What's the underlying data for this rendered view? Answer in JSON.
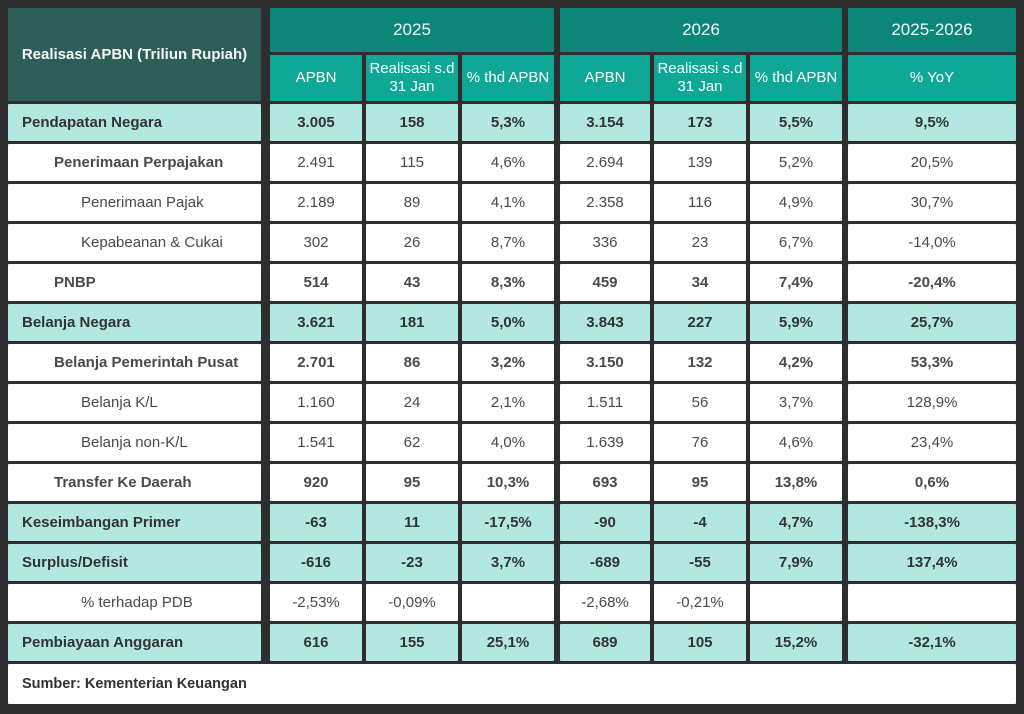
{
  "chart_data": {
    "type": "table",
    "title": "Realisasi APBN (Triliun Rupiah)",
    "column_groups": [
      {
        "label": "2025",
        "columns": [
          "APBN",
          "Realisasi s.d 31 Jan",
          "% thd APBN"
        ]
      },
      {
        "label": "2026",
        "columns": [
          "APBN",
          "Realisasi s.d 31 Jan",
          "% thd APBN"
        ]
      },
      {
        "label": "2025-2026",
        "columns": [
          "% YoY"
        ]
      }
    ],
    "rows": [
      {
        "label": "Pendapatan Negara",
        "indent": 0,
        "highlight": true,
        "label_bold": true,
        "values_bold": true,
        "values": [
          "3.005",
          "158",
          "5,3%",
          "3.154",
          "173",
          "5,5%",
          "9,5%"
        ]
      },
      {
        "label": "Penerimaan Perpajakan",
        "indent": 1,
        "highlight": false,
        "label_bold": true,
        "values_bold": false,
        "values": [
          "2.491",
          "115",
          "4,6%",
          "2.694",
          "139",
          "5,2%",
          "20,5%"
        ]
      },
      {
        "label": "Penerimaan Pajak",
        "indent": 2,
        "highlight": false,
        "label_bold": false,
        "values_bold": false,
        "values": [
          "2.189",
          "89",
          "4,1%",
          "2.358",
          "116",
          "4,9%",
          "30,7%"
        ]
      },
      {
        "label": "Kepabeanan & Cukai",
        "indent": 2,
        "highlight": false,
        "label_bold": false,
        "values_bold": false,
        "values": [
          "302",
          "26",
          "8,7%",
          "336",
          "23",
          "6,7%",
          "-14,0%"
        ]
      },
      {
        "label": "PNBP",
        "indent": 1,
        "highlight": false,
        "label_bold": true,
        "values_bold": true,
        "values": [
          "514",
          "43",
          "8,3%",
          "459",
          "34",
          "7,4%",
          "-20,4%"
        ]
      },
      {
        "label": "Belanja Negara",
        "indent": 0,
        "highlight": true,
        "label_bold": true,
        "values_bold": true,
        "values": [
          "3.621",
          "181",
          "5,0%",
          "3.843",
          "227",
          "5,9%",
          "25,7%"
        ]
      },
      {
        "label": "Belanja Pemerintah Pusat",
        "indent": 1,
        "highlight": false,
        "label_bold": true,
        "values_bold": true,
        "values": [
          "2.701",
          "86",
          "3,2%",
          "3.150",
          "132",
          "4,2%",
          "53,3%"
        ]
      },
      {
        "label": "Belanja K/L",
        "indent": 2,
        "highlight": false,
        "label_bold": false,
        "values_bold": false,
        "values": [
          "1.160",
          "24",
          "2,1%",
          "1.511",
          "56",
          "3,7%",
          "128,9%"
        ]
      },
      {
        "label": "Belanja non-K/L",
        "indent": 2,
        "highlight": false,
        "label_bold": false,
        "values_bold": false,
        "values": [
          "1.541",
          "62",
          "4,0%",
          "1.639",
          "76",
          "4,6%",
          "23,4%"
        ]
      },
      {
        "label": "Transfer Ke Daerah",
        "indent": 1,
        "highlight": false,
        "label_bold": true,
        "values_bold": true,
        "values": [
          "920",
          "95",
          "10,3%",
          "693",
          "95",
          "13,8%",
          "0,6%"
        ]
      },
      {
        "label": "Keseimbangan Primer",
        "indent": 0,
        "highlight": true,
        "label_bold": true,
        "values_bold": true,
        "values": [
          "-63",
          "11",
          "-17,5%",
          "-90",
          "-4",
          "4,7%",
          "-138,3%"
        ]
      },
      {
        "label": "Surplus/Defisit",
        "indent": 0,
        "highlight": true,
        "label_bold": true,
        "values_bold": true,
        "values": [
          "-616",
          "-23",
          "3,7%",
          "-689",
          "-55",
          "7,9%",
          "137,4%"
        ]
      },
      {
        "label": "% terhadap PDB",
        "indent": 2,
        "highlight": false,
        "label_bold": false,
        "values_bold": false,
        "values": [
          "-2,53%",
          "-0,09%",
          "",
          "-2,68%",
          "-0,21%",
          "",
          ""
        ]
      },
      {
        "label": "Pembiayaan Anggaran",
        "indent": 0,
        "highlight": true,
        "label_bold": true,
        "values_bold": true,
        "values": [
          "616",
          "155",
          "25,1%",
          "689",
          "105",
          "15,2%",
          "-32,1%"
        ]
      }
    ],
    "source_note": "Sumber: Kementerian Keuangan"
  },
  "colors": {
    "page_bg": "#2e2e2e",
    "corner_bg": "#2d5e57",
    "year_bg": "#0c8678",
    "sub_bg": "#0fa896",
    "hl_bg": "#b2e8e1",
    "row_bg": "#ffffff",
    "header_text": "#f3f7f6",
    "text_dark": "#333333"
  }
}
